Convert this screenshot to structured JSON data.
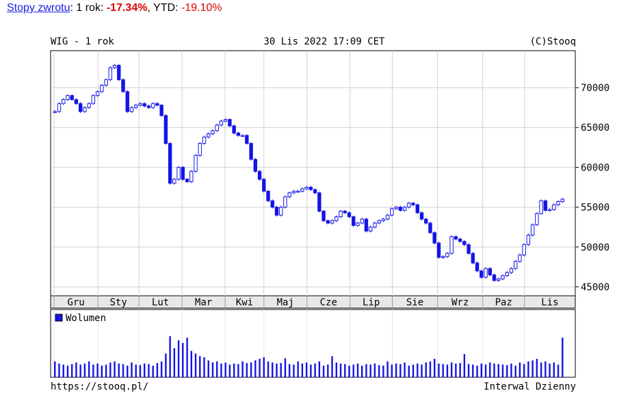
{
  "header": {
    "link": "Stopy zwrotu",
    "period": ": 1 rok: ",
    "return": "-17.34%",
    "ytd_label": ", YTD: ",
    "ytd": "-19.10%"
  },
  "chart_data": {
    "type": "candlestick",
    "title": "WIG - 1 rok",
    "subtitle": "30 Lis 2022 17:09 CET",
    "credit": "(C)Stooq",
    "footer_left": "https://stooq.pl/",
    "footer_right": "Interwal Dzienny",
    "color": "#1414e6",
    "grid": true,
    "xlim": [
      -1,
      122
    ],
    "xticks": [
      -0.2,
      10.1,
      19.7,
      29.8,
      39.9,
      49,
      59.1,
      69.2,
      79.1,
      89.7,
      100.3,
      110.1
    ],
    "months": [
      "Gru",
      "Sty",
      "Lut",
      "Mar",
      "Kwi",
      "Maj",
      "Cze",
      "Lip",
      "Sie",
      "Wrz",
      "Paz",
      "Lis"
    ],
    "ylim": [
      43880,
      74640
    ],
    "yticks": [
      45000,
      50000,
      55000,
      60000,
      65000,
      70000
    ],
    "close": [
      67000,
      68000,
      68500,
      69000,
      68500,
      68000,
      67000,
      67500,
      68000,
      69000,
      69500,
      70300,
      71000,
      72500,
      72800,
      71000,
      69500,
      67000,
      67500,
      67800,
      68000,
      67700,
      67500,
      68000,
      67800,
      66500,
      63000,
      58000,
      58500,
      60000,
      58500,
      58200,
      59500,
      61500,
      63000,
      63800,
      64200,
      64600,
      65300,
      65800,
      66000,
      65200,
      64300,
      64000,
      64000,
      63000,
      61000,
      59500,
      58500,
      57000,
      55800,
      55000,
      54000,
      55000,
      56300,
      56800,
      57000,
      57000,
      57300,
      57500,
      57200,
      56800,
      54500,
      53300,
      53000,
      53300,
      53800,
      54500,
      54300,
      53800,
      52700,
      53000,
      53500,
      52000,
      52500,
      53000,
      53300,
      53500,
      54000,
      54800,
      55000,
      54600,
      55000,
      55500,
      55300,
      54300,
      53500,
      53000,
      51800,
      50500,
      48700,
      48800,
      49200,
      51300,
      51000,
      50700,
      50300,
      49200,
      48000,
      47000,
      46200,
      47300,
      46500,
      45800,
      46000,
      46400,
      46800,
      47300,
      48200,
      49000,
      50300,
      51500,
      52800,
      54200,
      55800,
      54600,
      54700,
      55300,
      55700,
      56000
    ],
    "volume_label": "Wolumen",
    "vlim": [
      0,
      100
    ],
    "volume": [
      30,
      26,
      24,
      22,
      25,
      28,
      24,
      26,
      30,
      24,
      26,
      22,
      24,
      28,
      30,
      26,
      25,
      22,
      28,
      24,
      23,
      26,
      25,
      22,
      27,
      30,
      45,
      78,
      55,
      70,
      65,
      75,
      50,
      45,
      40,
      38,
      32,
      28,
      30,
      26,
      28,
      24,
      26,
      25,
      30,
      27,
      28,
      32,
      35,
      38,
      30,
      28,
      26,
      27,
      36,
      25,
      24,
      30,
      26,
      28,
      24,
      26,
      30,
      22,
      24,
      40,
      28,
      26,
      25,
      22,
      24,
      26,
      22,
      25,
      24,
      26,
      23,
      22,
      30,
      24,
      26,
      25,
      28,
      22,
      24,
      26,
      24,
      28,
      30,
      35,
      26,
      25,
      24,
      28,
      26,
      27,
      44,
      25,
      24,
      22,
      26,
      24,
      28,
      26,
      25,
      24,
      23,
      26,
      22,
      28,
      25,
      30,
      32,
      35,
      28,
      30,
      26,
      28,
      24,
      75
    ]
  }
}
